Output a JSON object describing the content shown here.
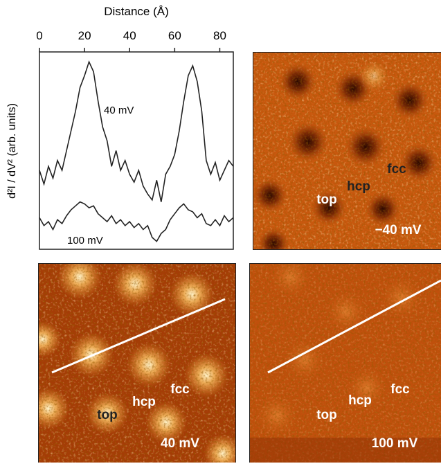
{
  "chart_data": {
    "type": "line",
    "x_label": "Distance (Å)",
    "y_label": "d²I / dV² (arb. units)",
    "x": [
      0,
      2,
      4,
      6,
      8,
      10,
      12,
      14,
      16,
      18,
      20,
      22,
      24,
      26,
      28,
      30,
      32,
      34,
      36,
      38,
      40,
      42,
      44,
      46,
      48,
      50,
      52,
      54,
      56,
      58,
      60,
      62,
      64,
      66,
      68,
      70,
      72,
      74,
      76,
      78,
      80,
      82,
      84,
      86
    ],
    "series": [
      {
        "name": "40 mV",
        "color": "#222222",
        "values": [
          40,
          33,
          42,
          36,
          45,
          40,
          50,
          60,
          70,
          82,
          88,
          95,
          90,
          75,
          62,
          55,
          42,
          50,
          40,
          45,
          38,
          34,
          40,
          32,
          28,
          25,
          35,
          24,
          38,
          42,
          48,
          60,
          75,
          88,
          93,
          85,
          70,
          45,
          38,
          44,
          35,
          40,
          45,
          42
        ]
      },
      {
        "name": "100 mV",
        "color": "#222222",
        "values": [
          16,
          12,
          14,
          10,
          15,
          13,
          17,
          20,
          22,
          24,
          23,
          21,
          22,
          18,
          16,
          14,
          17,
          13,
          15,
          12,
          14,
          11,
          13,
          10,
          12,
          6,
          4,
          8,
          10,
          15,
          18,
          21,
          23,
          20,
          19,
          16,
          18,
          13,
          12,
          15,
          12,
          17,
          14,
          16
        ]
      }
    ],
    "xlim": [
      0,
      86
    ],
    "xticks": [
      0,
      20,
      40,
      60,
      80
    ],
    "ylim": [
      0,
      100
    ]
  },
  "panels": [
    {
      "labels": [
        "fcc",
        "hcp",
        "top",
        "−40 mV"
      ]
    },
    {
      "labels": [
        "fcc",
        "hcp",
        "top",
        "40 mV"
      ]
    },
    {
      "labels": [
        "fcc",
        "hcp",
        "top",
        "100 mV"
      ]
    }
  ]
}
